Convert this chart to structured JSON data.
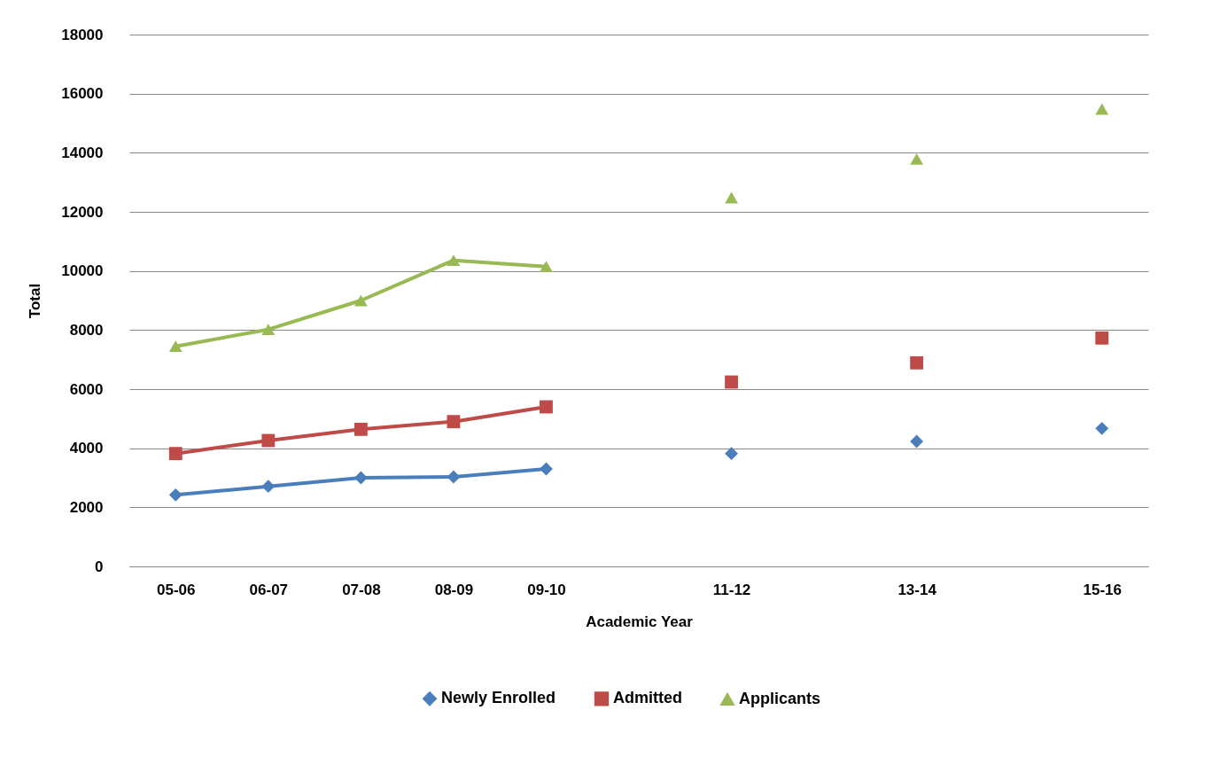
{
  "chart_data": {
    "type": "line",
    "xlabel": "Academic Year",
    "ylabel": "Total",
    "categories": [
      "05-06",
      "06-07",
      "07-08",
      "08-09",
      "09-10",
      null,
      "11-12",
      null,
      "13-14",
      null,
      "15-16"
    ],
    "series": [
      {
        "name": "Newly Enrolled",
        "color": "#4a7ebb",
        "marker": "diamond",
        "values": [
          2420,
          2710,
          3000,
          3030,
          3300,
          null,
          3820,
          null,
          4230,
          null,
          4670
        ]
      },
      {
        "name": "Admitted",
        "color": "#be4b48",
        "marker": "square",
        "values": [
          3820,
          4260,
          4640,
          4900,
          5400,
          null,
          6240,
          null,
          6890,
          null,
          7730
        ]
      },
      {
        "name": "Applicants",
        "color": "#98b954",
        "marker": "triangle",
        "values": [
          7450,
          8020,
          9000,
          10360,
          10150,
          null,
          12480,
          null,
          13790,
          null,
          15480
        ]
      }
    ],
    "ylim": [
      0,
      18000
    ],
    "yticks": [
      0,
      2000,
      4000,
      6000,
      8000,
      10000,
      12000,
      14000,
      16000,
      18000
    ],
    "grid": "y",
    "legend": "bottom"
  }
}
